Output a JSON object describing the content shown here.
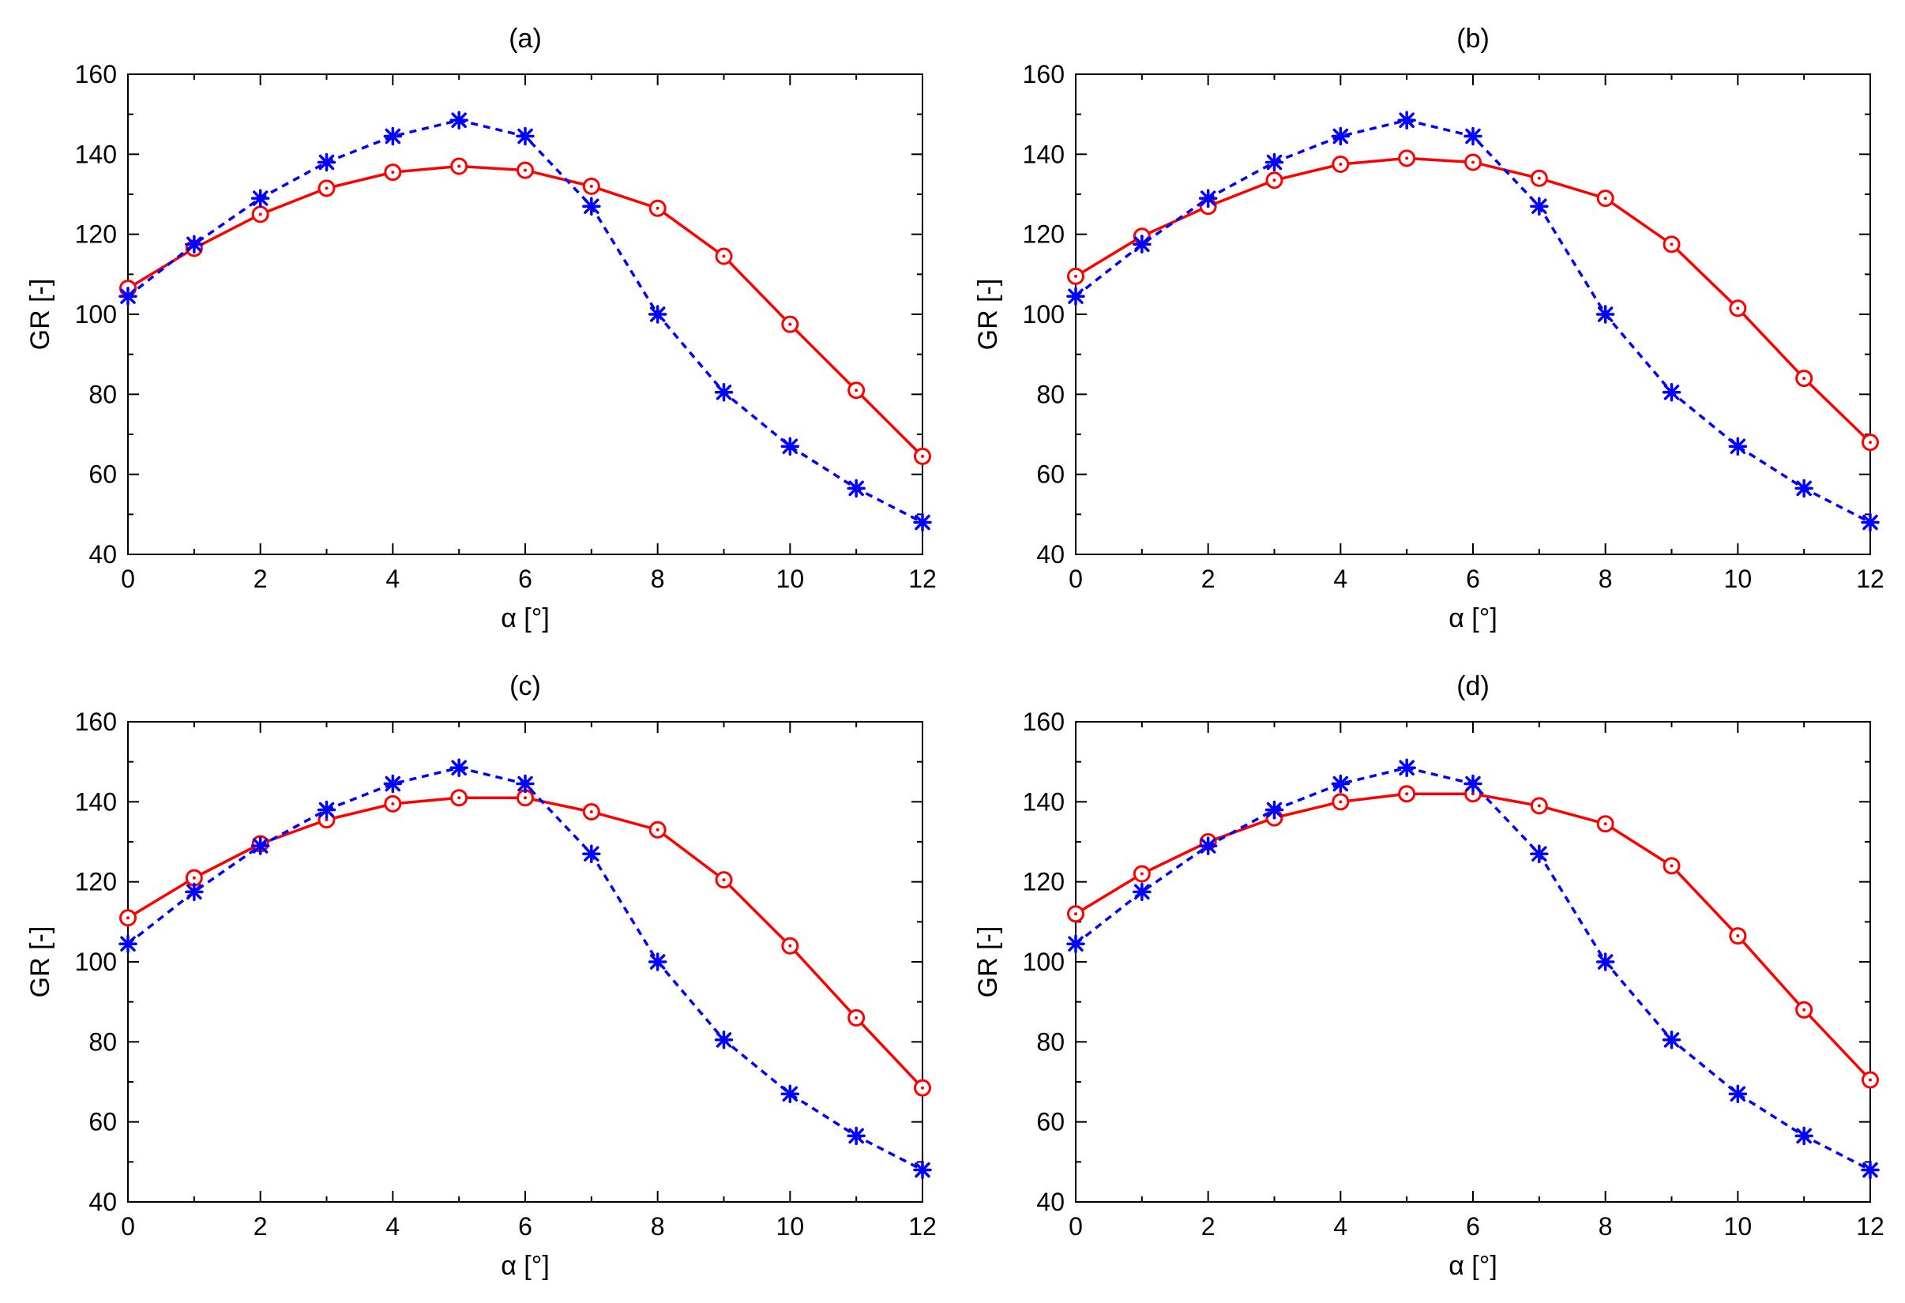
{
  "figure": {
    "background": "#ffffff"
  },
  "chart_data": [
    {
      "type": "line",
      "title": "(a)",
      "xlabel": "α [°]",
      "ylabel": "GR [-]",
      "xlim": [
        0,
        12
      ],
      "ylim": [
        40,
        160
      ],
      "xticks": [
        0,
        2,
        4,
        6,
        8,
        10,
        12
      ],
      "yticks": [
        40,
        60,
        80,
        100,
        120,
        140,
        160
      ],
      "grid": false,
      "series": [
        {
          "color": "#ff0000",
          "style": "solid",
          "marker": "circle",
          "x": [
            0,
            1,
            2,
            3,
            4,
            5,
            6,
            7,
            8,
            9,
            10,
            11,
            12
          ],
          "y": [
            106.5,
            116.5,
            125,
            131.5,
            135.5,
            137,
            136,
            132,
            126.5,
            114.5,
            97.5,
            81,
            64.5
          ]
        },
        {
          "color": "#0000ff",
          "style": "dashed",
          "marker": "asterisk",
          "x": [
            0,
            1,
            2,
            3,
            4,
            5,
            6,
            7,
            8,
            9,
            10,
            11,
            12
          ],
          "y": [
            104.5,
            117.5,
            129,
            138,
            144.5,
            148.5,
            144.5,
            127,
            100,
            80.5,
            67,
            56.5,
            48
          ]
        }
      ]
    },
    {
      "type": "line",
      "title": "(b)",
      "xlabel": "α [°]",
      "ylabel": "GR [-]",
      "xlim": [
        0,
        12
      ],
      "ylim": [
        40,
        160
      ],
      "xticks": [
        0,
        2,
        4,
        6,
        8,
        10,
        12
      ],
      "yticks": [
        40,
        60,
        80,
        100,
        120,
        140,
        160
      ],
      "grid": false,
      "series": [
        {
          "color": "#ff0000",
          "style": "solid",
          "marker": "circle",
          "x": [
            0,
            1,
            2,
            3,
            4,
            5,
            6,
            7,
            8,
            9,
            10,
            11,
            12
          ],
          "y": [
            109.5,
            119.5,
            127,
            133.5,
            137.5,
            139,
            138,
            134,
            129,
            117.5,
            101.5,
            84,
            68
          ]
        },
        {
          "color": "#0000ff",
          "style": "dashed",
          "marker": "asterisk",
          "x": [
            0,
            1,
            2,
            3,
            4,
            5,
            6,
            7,
            8,
            9,
            10,
            11,
            12
          ],
          "y": [
            104.5,
            117.5,
            129,
            138,
            144.5,
            148.5,
            144.5,
            127,
            100,
            80.5,
            67,
            56.5,
            48
          ]
        }
      ]
    },
    {
      "type": "line",
      "title": "(c)",
      "xlabel": "α [°]",
      "ylabel": "GR [-]",
      "xlim": [
        0,
        12
      ],
      "ylim": [
        40,
        160
      ],
      "xticks": [
        0,
        2,
        4,
        6,
        8,
        10,
        12
      ],
      "yticks": [
        40,
        60,
        80,
        100,
        120,
        140,
        160
      ],
      "grid": false,
      "series": [
        {
          "color": "#ff0000",
          "style": "solid",
          "marker": "circle",
          "x": [
            0,
            1,
            2,
            3,
            4,
            5,
            6,
            7,
            8,
            9,
            10,
            11,
            12
          ],
          "y": [
            111,
            121,
            129.5,
            135.5,
            139.5,
            141,
            141,
            137.5,
            133,
            120.5,
            104,
            86,
            68.5
          ]
        },
        {
          "color": "#0000ff",
          "style": "dashed",
          "marker": "asterisk",
          "x": [
            0,
            1,
            2,
            3,
            4,
            5,
            6,
            7,
            8,
            9,
            10,
            11,
            12
          ],
          "y": [
            104.5,
            117.5,
            129,
            138,
            144.5,
            148.5,
            144.5,
            127,
            100,
            80.5,
            67,
            56.5,
            48
          ]
        }
      ]
    },
    {
      "type": "line",
      "title": "(d)",
      "xlabel": "α [°]",
      "ylabel": "GR [-]",
      "xlim": [
        0,
        12
      ],
      "ylim": [
        40,
        160
      ],
      "xticks": [
        0,
        2,
        4,
        6,
        8,
        10,
        12
      ],
      "yticks": [
        40,
        60,
        80,
        100,
        120,
        140,
        160
      ],
      "grid": false,
      "series": [
        {
          "color": "#ff0000",
          "style": "solid",
          "marker": "circle",
          "x": [
            0,
            1,
            2,
            3,
            4,
            5,
            6,
            7,
            8,
            9,
            10,
            11,
            12
          ],
          "y": [
            112,
            122,
            130,
            136,
            140,
            142,
            142,
            139,
            134.5,
            124,
            106.5,
            88,
            70.5
          ]
        },
        {
          "color": "#0000ff",
          "style": "dashed",
          "marker": "asterisk",
          "x": [
            0,
            1,
            2,
            3,
            4,
            5,
            6,
            7,
            8,
            9,
            10,
            11,
            12
          ],
          "y": [
            104.5,
            117.5,
            129,
            138,
            144.5,
            148.5,
            144.5,
            127,
            100,
            80.5,
            67,
            56.5,
            48
          ]
        }
      ]
    }
  ]
}
